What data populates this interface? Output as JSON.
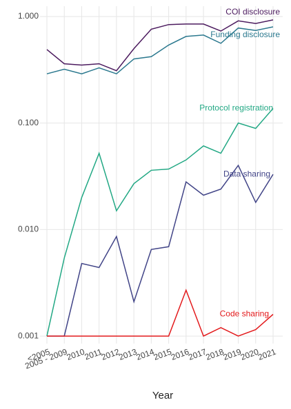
{
  "chart_data": {
    "type": "line",
    "x_label": "Year",
    "categories": [
      "<2005",
      "2005 - 2009",
      "2010",
      "2011",
      "2012",
      "2013",
      "2014",
      "2015",
      "2016",
      "2017",
      "2018",
      "2019",
      "2020",
      "2021"
    ],
    "log_y": true,
    "grid": true,
    "ylim": [
      0.00085,
      1.25
    ],
    "yticks": [
      {
        "value": 0.001,
        "label": "0.001"
      },
      {
        "value": 0.01,
        "label": "0.010"
      },
      {
        "value": 0.1,
        "label": "0.100"
      },
      {
        "value": 1,
        "label": "1.000"
      }
    ],
    "series": [
      {
        "name": "COI disclosure",
        "color": "#4b1a5e",
        "values": [
          0.49,
          0.36,
          0.35,
          0.36,
          0.31,
          0.5,
          0.76,
          0.84,
          0.85,
          0.85,
          0.73,
          0.91,
          0.86,
          0.93
        ]
      },
      {
        "name": "Funding disclosure",
        "color": "#2a788e",
        "values": [
          0.29,
          0.32,
          0.29,
          0.33,
          0.29,
          0.4,
          0.42,
          0.54,
          0.65,
          0.67,
          0.56,
          0.78,
          0.74,
          0.8
        ]
      },
      {
        "name": "Protocol registration",
        "color": "#22a884",
        "values": [
          0.001,
          0.0054,
          0.02,
          0.052,
          0.015,
          0.027,
          0.036,
          0.037,
          0.045,
          0.061,
          0.052,
          0.1,
          0.089,
          0.137
        ]
      },
      {
        "name": "Data sharing",
        "color": "#414487",
        "values": [
          0.001,
          0.001,
          0.0048,
          0.0044,
          0.0086,
          0.0021,
          0.0065,
          0.0069,
          0.028,
          0.021,
          0.024,
          0.04,
          0.018,
          0.033
        ]
      },
      {
        "name": "Code sharing",
        "color": "#e31a1c",
        "values": [
          0.001,
          0.001,
          0.001,
          0.001,
          0.001,
          0.001,
          0.001,
          0.001,
          0.0027,
          0.001,
          0.0012,
          0.001,
          0.00115,
          0.0016
        ]
      }
    ]
  }
}
